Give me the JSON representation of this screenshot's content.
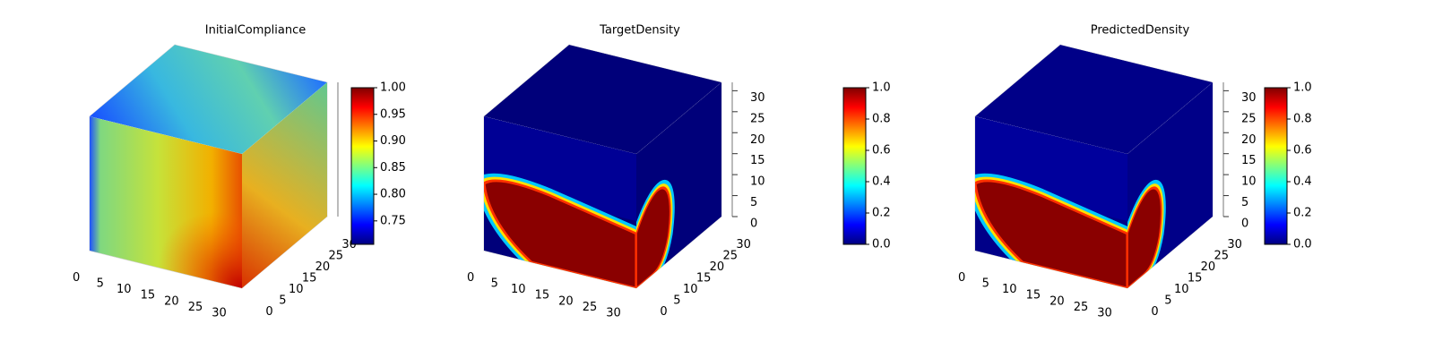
{
  "chart_data": [
    {
      "type": "voxel",
      "title": "InitialCompliance",
      "xlim": [
        0,
        32
      ],
      "ylim": [
        0,
        32
      ],
      "zlim": [
        0,
        32
      ],
      "xticks": [
        0,
        5,
        10,
        15,
        20,
        25,
        30
      ],
      "yticks": [
        0,
        5,
        10,
        15,
        20,
        25,
        30
      ],
      "colormap": "jet",
      "clim": [
        0.706,
        1.0
      ],
      "cticks": [
        {
          "value": 0.75,
          "label": "0.75"
        },
        {
          "value": 0.8,
          "label": "0.80"
        },
        {
          "value": 0.85,
          "label": "0.85"
        },
        {
          "value": 0.9,
          "label": "0.90"
        },
        {
          "value": 0.95,
          "label": "0.95"
        },
        {
          "value": 1.0,
          "label": "1.00"
        }
      ]
    },
    {
      "type": "voxel",
      "title": "TargetDensity",
      "xlim": [
        0,
        32
      ],
      "ylim": [
        0,
        32
      ],
      "zlim": [
        0,
        32
      ],
      "xticks": [
        0,
        5,
        10,
        15,
        20,
        25,
        30
      ],
      "yticks": [
        0,
        5,
        10,
        15,
        20,
        25,
        30
      ],
      "zticks": [
        0,
        5,
        10,
        15,
        20,
        25,
        30
      ],
      "colormap": "jet",
      "clim": [
        0.0,
        1.0
      ],
      "cticks": [
        {
          "value": 0,
          "label": "0.0"
        },
        {
          "value": 0.2,
          "label": "0.2"
        },
        {
          "value": 0.4,
          "label": "0.4"
        },
        {
          "value": 0.6,
          "label": "0.6"
        },
        {
          "value": 0.8,
          "label": "0.8"
        },
        {
          "value": 1,
          "label": "1.0"
        }
      ]
    },
    {
      "type": "voxel",
      "title": "PredictedDensity",
      "xlim": [
        0,
        32
      ],
      "ylim": [
        0,
        32
      ],
      "zlim": [
        0,
        32
      ],
      "xticks": [
        0,
        5,
        10,
        15,
        20,
        25,
        30
      ],
      "yticks": [
        0,
        5,
        10,
        15,
        20,
        25,
        30
      ],
      "zticks": [
        0,
        5,
        10,
        15,
        20,
        25,
        30
      ],
      "colormap": "jet",
      "clim": [
        0.0,
        1.0
      ],
      "cticks": [
        {
          "value": 0,
          "label": "0.0"
        },
        {
          "value": 0.2,
          "label": "0.2"
        },
        {
          "value": 0.4,
          "label": "0.4"
        },
        {
          "value": 0.6,
          "label": "0.6"
        },
        {
          "value": 0.8,
          "label": "0.8"
        },
        {
          "value": 1,
          "label": "1.0"
        }
      ]
    }
  ]
}
